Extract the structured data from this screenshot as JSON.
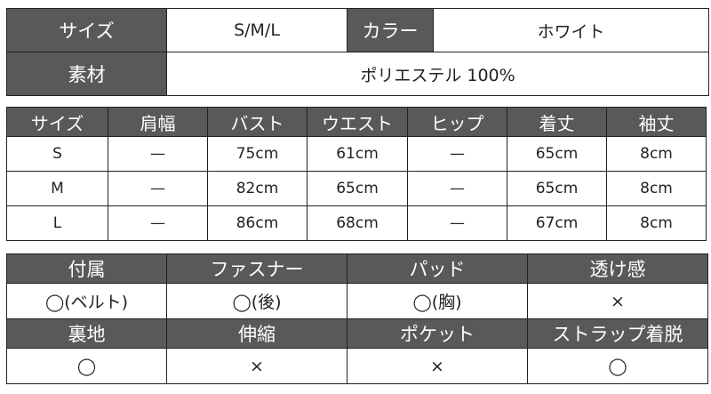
{
  "summary": {
    "size_label": "サイズ",
    "size_value": "S/M/L",
    "color_label": "カラー",
    "color_value": "ホワイト",
    "material_label": "素材",
    "material_value": "ポリエステル 100%"
  },
  "size_chart": {
    "headers": [
      "サイズ",
      "肩幅",
      "バスト",
      "ウエスト",
      "ヒップ",
      "着丈",
      "袖丈"
    ],
    "rows": [
      [
        "S",
        "—",
        "75cm",
        "61cm",
        "—",
        "65cm",
        "8cm"
      ],
      [
        "M",
        "—",
        "82cm",
        "65cm",
        "—",
        "65cm",
        "8cm"
      ],
      [
        "L",
        "—",
        "86cm",
        "68cm",
        "—",
        "67cm",
        "8cm"
      ]
    ]
  },
  "features": {
    "headers_1": [
      "付属",
      "ファスナー",
      "パッド",
      "透け感"
    ],
    "values_1": [
      "◯(ベルト)",
      "◯(後)",
      "◯(胸)",
      "×"
    ],
    "headers_2": [
      "裏地",
      "伸縮",
      "ポケット",
      "ストラップ着脱"
    ],
    "values_2": [
      "◯",
      "×",
      "×",
      "◯"
    ]
  },
  "colors": {
    "header_bg": "#595959",
    "header_text": "#ffffff",
    "border": "#222222"
  }
}
